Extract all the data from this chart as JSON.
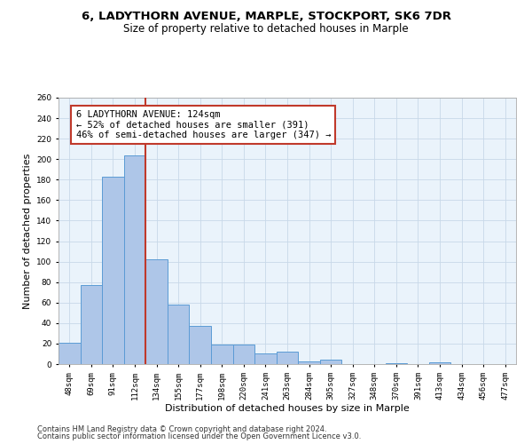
{
  "title": "6, LADYTHORN AVENUE, MARPLE, STOCKPORT, SK6 7DR",
  "subtitle": "Size of property relative to detached houses in Marple",
  "xlabel": "Distribution of detached houses by size in Marple",
  "ylabel": "Number of detached properties",
  "categories": [
    "48sqm",
    "69sqm",
    "91sqm",
    "112sqm",
    "134sqm",
    "155sqm",
    "177sqm",
    "198sqm",
    "220sqm",
    "241sqm",
    "263sqm",
    "284sqm",
    "305sqm",
    "327sqm",
    "348sqm",
    "370sqm",
    "391sqm",
    "413sqm",
    "434sqm",
    "456sqm",
    "477sqm"
  ],
  "values": [
    21,
    77,
    183,
    204,
    102,
    58,
    37,
    19,
    19,
    10,
    12,
    3,
    4,
    0,
    0,
    1,
    0,
    2,
    0,
    0,
    0
  ],
  "bar_color": "#aec6e8",
  "bar_edge_color": "#5b9bd5",
  "vline_x": 3.5,
  "vline_color": "#c0392b",
  "annotation_text": "6 LADYTHORN AVENUE: 124sqm\n← 52% of detached houses are smaller (391)\n46% of semi-detached houses are larger (347) →",
  "annotation_box_color": "#ffffff",
  "annotation_border_color": "#c0392b",
  "ylim": [
    0,
    260
  ],
  "yticks": [
    0,
    20,
    40,
    60,
    80,
    100,
    120,
    140,
    160,
    180,
    200,
    220,
    240,
    260
  ],
  "grid_color": "#c8d8e8",
  "bg_color": "#eaf3fb",
  "footer_line1": "Contains HM Land Registry data © Crown copyright and database right 2024.",
  "footer_line2": "Contains public sector information licensed under the Open Government Licence v3.0.",
  "title_fontsize": 9.5,
  "subtitle_fontsize": 8.5,
  "ylabel_fontsize": 8,
  "xlabel_fontsize": 8,
  "tick_fontsize": 6.5,
  "annotation_fontsize": 7.5,
  "footer_fontsize": 6
}
